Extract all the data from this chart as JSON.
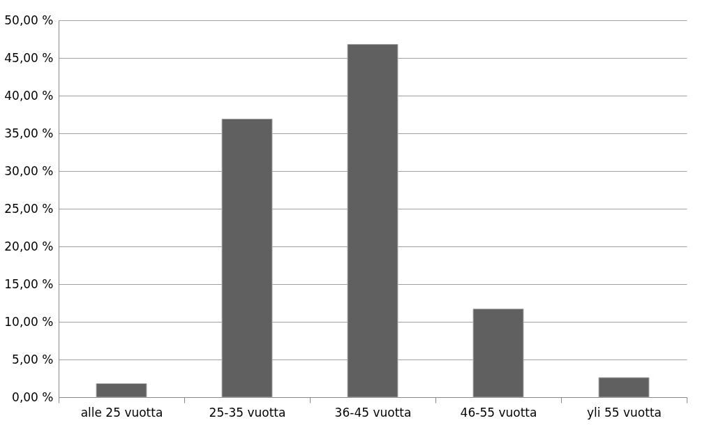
{
  "chart_data": {
    "type": "bar",
    "categories": [
      "alle 25 vuotta",
      "25-35 vuotta",
      "36-45 vuotta",
      "46-55 vuotta",
      "yli 55 vuotta"
    ],
    "values": [
      1.8,
      36.9,
      46.8,
      11.7,
      2.6
    ],
    "color": "#606060",
    "ylim": [
      0,
      50
    ],
    "yticks": [
      {
        "value": 0,
        "label": "0,00 %"
      },
      {
        "value": 5,
        "label": "5,00 %"
      },
      {
        "value": 10,
        "label": "10,00 %"
      },
      {
        "value": 15,
        "label": "15,00 %"
      },
      {
        "value": 20,
        "label": "20,00 %"
      },
      {
        "value": 25,
        "label": "25,00 %"
      },
      {
        "value": 30,
        "label": "30,00 %"
      },
      {
        "value": 35,
        "label": "35,00 %"
      },
      {
        "value": 40,
        "label": "40,00 %"
      },
      {
        "value": 45,
        "label": "45,00 %"
      },
      {
        "value": 50,
        "label": "50,00 %"
      }
    ],
    "grid": "y"
  }
}
